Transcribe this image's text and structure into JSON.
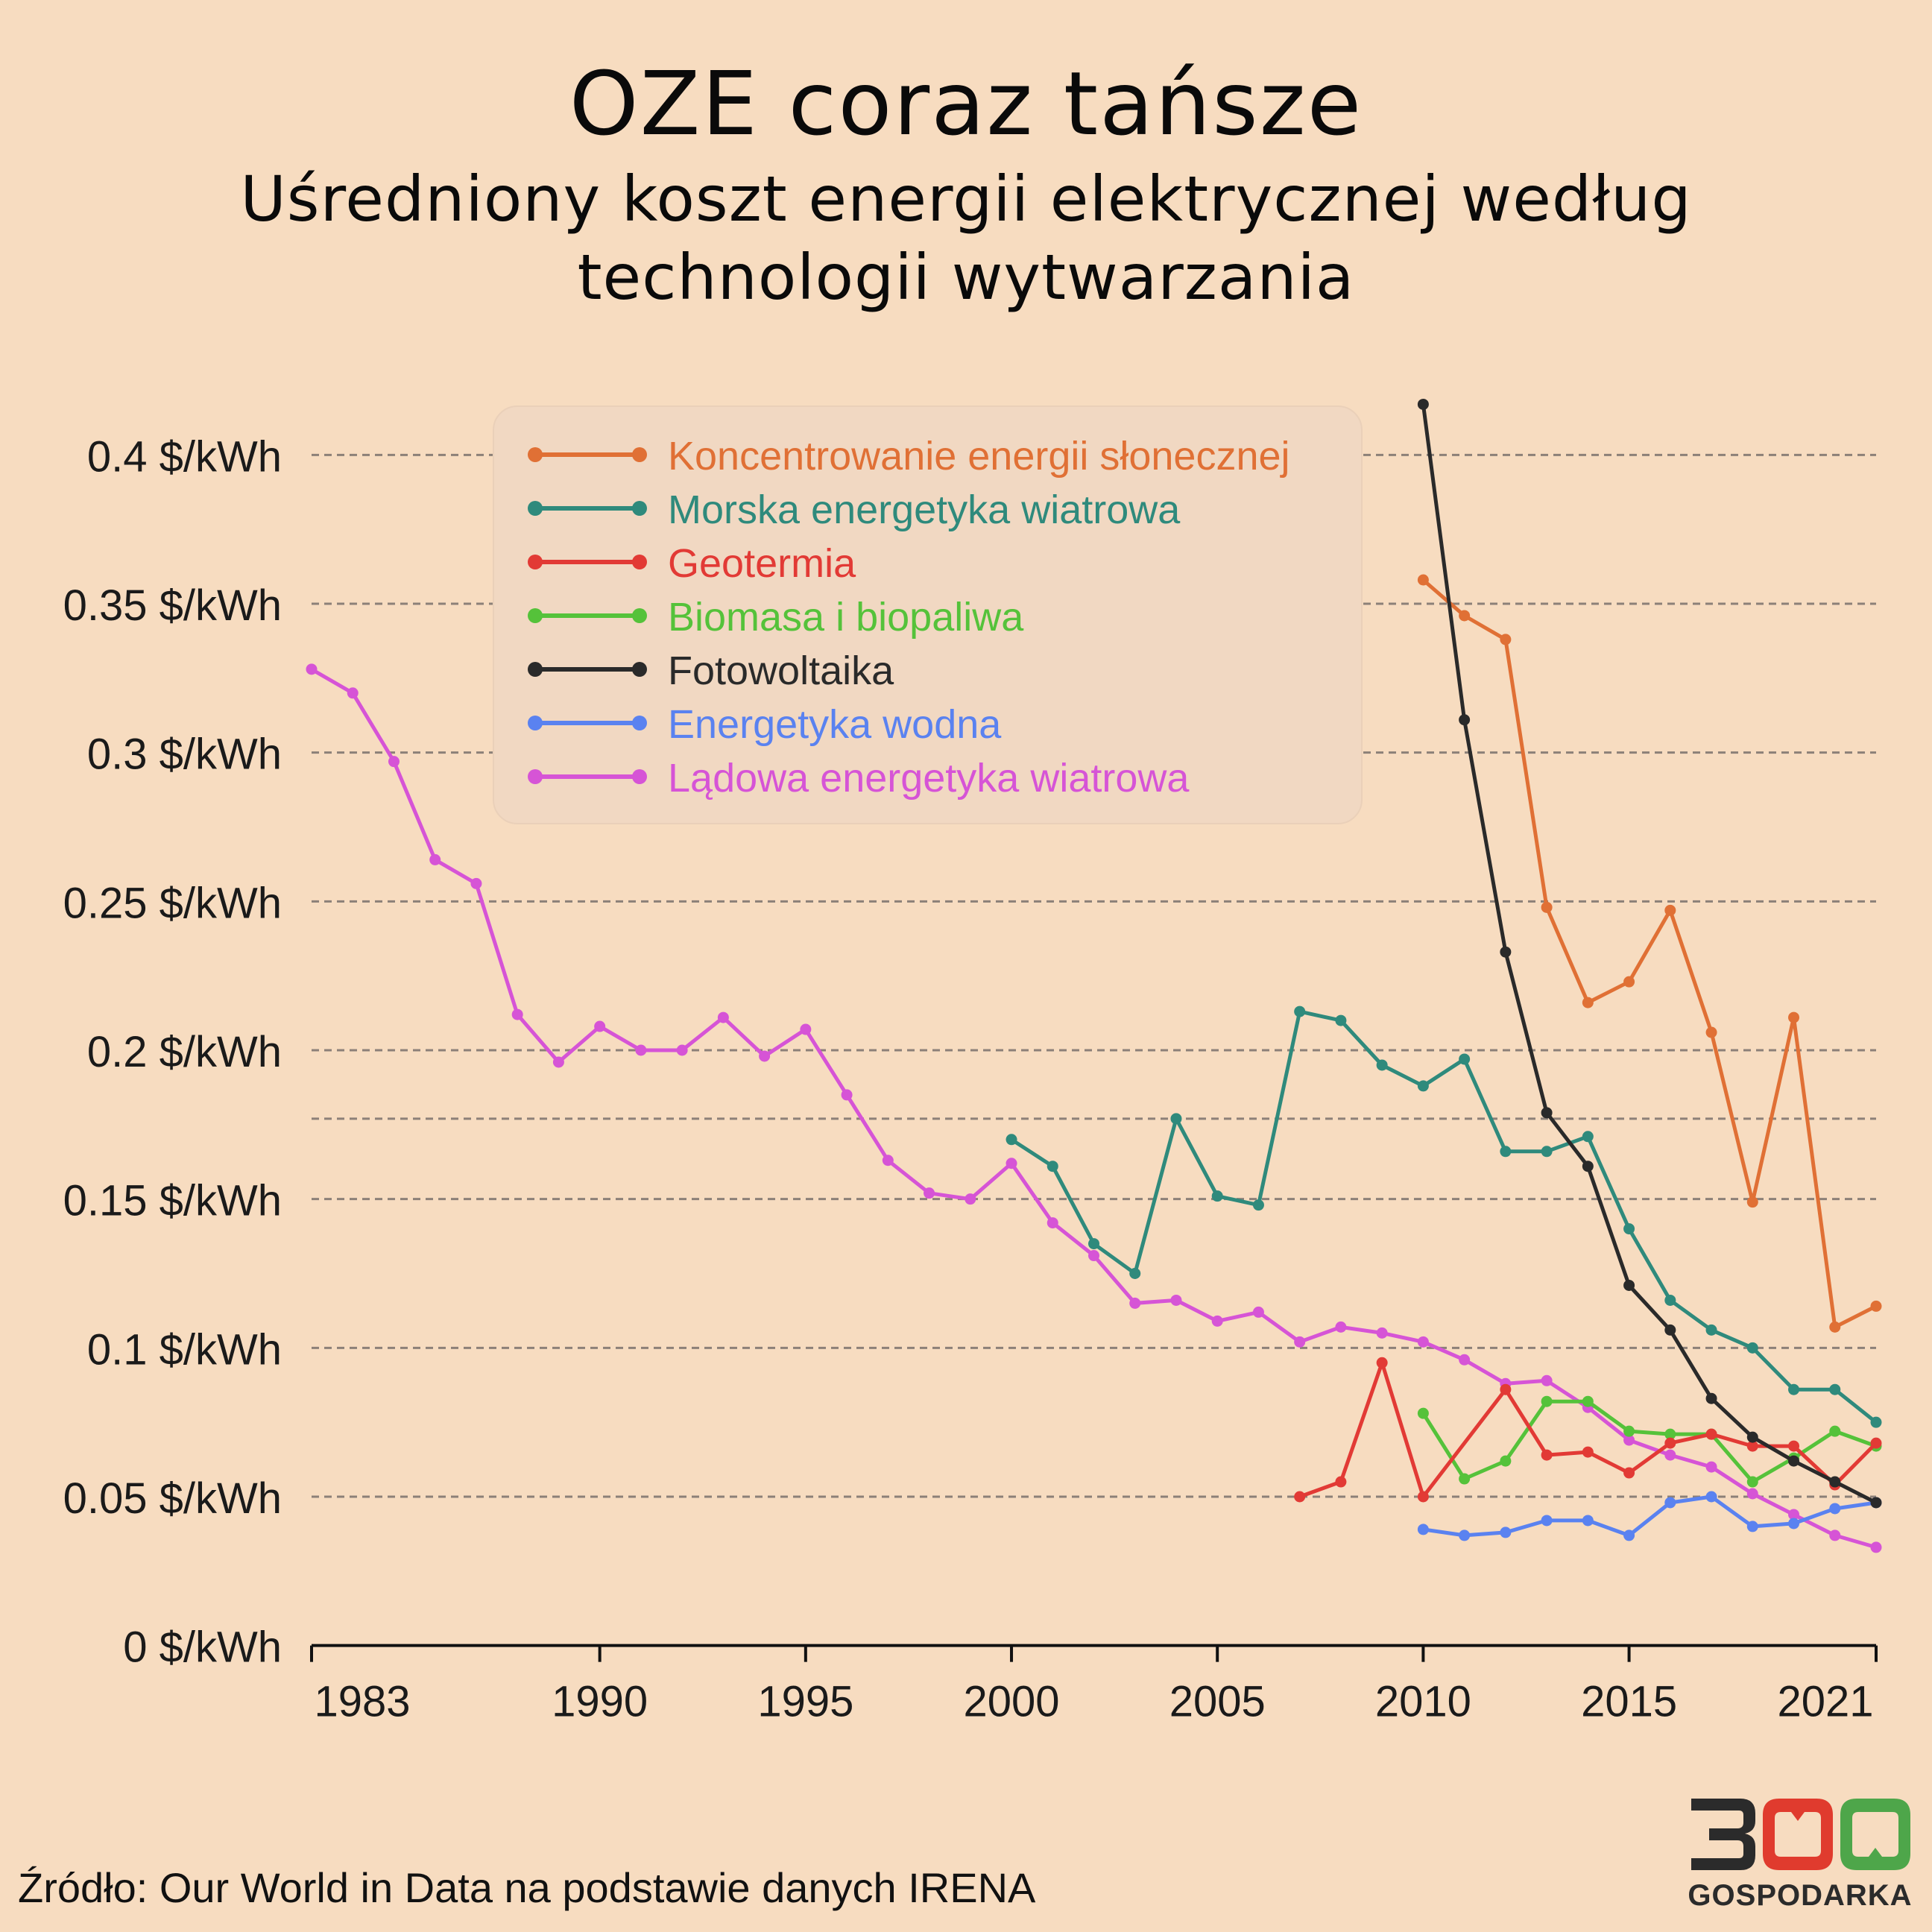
{
  "page": {
    "title": "OZE coraz tańsze",
    "subtitle_line1": "Uśredniony koszt energii elektrycznej według",
    "subtitle_line2": "technologii wytwarzania",
    "source": "Źródło: Our World in Data na podstawie danych IRENA",
    "logo": {
      "brand": "300",
      "word": "GOSPODARKA",
      "colors": [
        "#2b2b2b",
        "#e03b2e",
        "#4ea64a"
      ]
    }
  },
  "colors": {
    "background": "#f7dcc0",
    "grid": "#8c8078",
    "axis": "#111111"
  },
  "chart_data": {
    "type": "line",
    "title": "",
    "xlabel": "",
    "ylabel": "",
    "xlim": [
      1983,
      2021
    ],
    "ylim": [
      0,
      0.42
    ],
    "unit_suffix": " $/kWh",
    "x_ticks": [
      1983,
      1990,
      1995,
      2000,
      2005,
      2010,
      2015,
      2021
    ],
    "y_ticks": [
      {
        "value": 0,
        "label": "0 $/kWh"
      },
      {
        "value": 0.05,
        "label": "0.05 $/kWh"
      },
      {
        "value": 0.1,
        "label": "0.1 $/kWh"
      },
      {
        "value": 0.15,
        "label": "0.15 $/kWh"
      },
      {
        "value": 0.2,
        "label": "0.2 $/kWh"
      },
      {
        "value": 0.25,
        "label": "0.25 $/kWh"
      },
      {
        "value": 0.3,
        "label": "0.3 $/kWh"
      },
      {
        "value": 0.35,
        "label": "0.35 $/kWh"
      },
      {
        "value": 0.4,
        "label": "0.4 $/kWh"
      }
    ],
    "extra_gridline": 0.177,
    "grid": true,
    "legend_position": "top-center",
    "series": [
      {
        "name": "Koncentrowanie energii słonecznej",
        "color": "#e07035",
        "points": [
          [
            2010,
            0.358
          ],
          [
            2011,
            0.346
          ],
          [
            2012,
            0.338
          ],
          [
            2013,
            0.248
          ],
          [
            2014,
            0.216
          ],
          [
            2015,
            0.223
          ],
          [
            2016,
            0.247
          ],
          [
            2017,
            0.206
          ],
          [
            2018,
            0.149
          ],
          [
            2019,
            0.211
          ],
          [
            2020,
            0.107
          ],
          [
            2021,
            0.114
          ]
        ]
      },
      {
        "name": "Morska energetyka wiatrowa",
        "color": "#2f8a7c",
        "points": [
          [
            2000,
            0.17
          ],
          [
            2001,
            0.161
          ],
          [
            2002,
            0.135
          ],
          [
            2003,
            0.125
          ],
          [
            2004,
            0.177
          ],
          [
            2005,
            0.151
          ],
          [
            2006,
            0.148
          ],
          [
            2007,
            0.213
          ],
          [
            2008,
            0.21
          ],
          [
            2009,
            0.195
          ],
          [
            2010,
            0.188
          ],
          [
            2011,
            0.197
          ],
          [
            2012,
            0.166
          ],
          [
            2013,
            0.166
          ],
          [
            2014,
            0.171
          ],
          [
            2015,
            0.14
          ],
          [
            2016,
            0.116
          ],
          [
            2017,
            0.106
          ],
          [
            2018,
            0.1
          ],
          [
            2019,
            0.086
          ],
          [
            2020,
            0.086
          ],
          [
            2021,
            0.075
          ]
        ]
      },
      {
        "name": "Geotermia",
        "color": "#e23a35",
        "points": [
          [
            2007,
            0.05
          ],
          [
            2008,
            0.055
          ],
          [
            2009,
            0.095
          ],
          [
            2010,
            0.05
          ],
          [
            2012,
            0.086
          ],
          [
            2013,
            0.064
          ],
          [
            2014,
            0.065
          ],
          [
            2015,
            0.058
          ],
          [
            2016,
            0.068
          ],
          [
            2017,
            0.071
          ],
          [
            2018,
            0.067
          ],
          [
            2019,
            0.067
          ],
          [
            2020,
            0.054
          ],
          [
            2021,
            0.068
          ]
        ]
      },
      {
        "name": "Biomasa i biopaliwa",
        "color": "#55c23a",
        "points": [
          [
            2010,
            0.078
          ],
          [
            2011,
            0.056
          ],
          [
            2012,
            0.062
          ],
          [
            2013,
            0.082
          ],
          [
            2014,
            0.082
          ],
          [
            2015,
            0.072
          ],
          [
            2016,
            0.071
          ],
          [
            2017,
            0.071
          ],
          [
            2018,
            0.055
          ],
          [
            2019,
            0.063
          ],
          [
            2020,
            0.072
          ],
          [
            2021,
            0.067
          ]
        ]
      },
      {
        "name": "Fotowoltaika",
        "color": "#2a2a2a",
        "points": [
          [
            2010,
            0.417
          ],
          [
            2011,
            0.311
          ],
          [
            2012,
            0.233
          ],
          [
            2013,
            0.179
          ],
          [
            2014,
            0.161
          ],
          [
            2015,
            0.121
          ],
          [
            2016,
            0.106
          ],
          [
            2017,
            0.083
          ],
          [
            2018,
            0.07
          ],
          [
            2019,
            0.062
          ],
          [
            2020,
            0.055
          ],
          [
            2021,
            0.048
          ]
        ]
      },
      {
        "name": "Energetyka wodna",
        "color": "#5a82f0",
        "points": [
          [
            2010,
            0.039
          ],
          [
            2011,
            0.037
          ],
          [
            2012,
            0.038
          ],
          [
            2013,
            0.042
          ],
          [
            2014,
            0.042
          ],
          [
            2015,
            0.037
          ],
          [
            2016,
            0.048
          ],
          [
            2017,
            0.05
          ],
          [
            2018,
            0.04
          ],
          [
            2019,
            0.041
          ],
          [
            2020,
            0.046
          ],
          [
            2021,
            0.048
          ]
        ]
      },
      {
        "name": "Lądowa energetyka wiatrowa",
        "color": "#d654d6",
        "points": [
          [
            1983,
            0.328
          ],
          [
            1984,
            0.32
          ],
          [
            1985,
            0.297
          ],
          [
            1986,
            0.264
          ],
          [
            1987,
            0.256
          ],
          [
            1988,
            0.212
          ],
          [
            1989,
            0.196
          ],
          [
            1990,
            0.208
          ],
          [
            1991,
            0.2
          ],
          [
            1992,
            0.2
          ],
          [
            1993,
            0.211
          ],
          [
            1994,
            0.198
          ],
          [
            1995,
            0.207
          ],
          [
            1996,
            0.185
          ],
          [
            1997,
            0.163
          ],
          [
            1998,
            0.152
          ],
          [
            1999,
            0.15
          ],
          [
            2000,
            0.162
          ],
          [
            2001,
            0.142
          ],
          [
            2002,
            0.131
          ],
          [
            2003,
            0.115
          ],
          [
            2004,
            0.116
          ],
          [
            2005,
            0.109
          ],
          [
            2006,
            0.112
          ],
          [
            2007,
            0.102
          ],
          [
            2008,
            0.107
          ],
          [
            2009,
            0.105
          ],
          [
            2010,
            0.102
          ],
          [
            2011,
            0.096
          ],
          [
            2012,
            0.088
          ],
          [
            2013,
            0.089
          ],
          [
            2014,
            0.08
          ],
          [
            2015,
            0.069
          ],
          [
            2016,
            0.064
          ],
          [
            2017,
            0.06
          ],
          [
            2018,
            0.051
          ],
          [
            2019,
            0.044
          ],
          [
            2020,
            0.037
          ],
          [
            2021,
            0.033
          ]
        ]
      }
    ]
  }
}
